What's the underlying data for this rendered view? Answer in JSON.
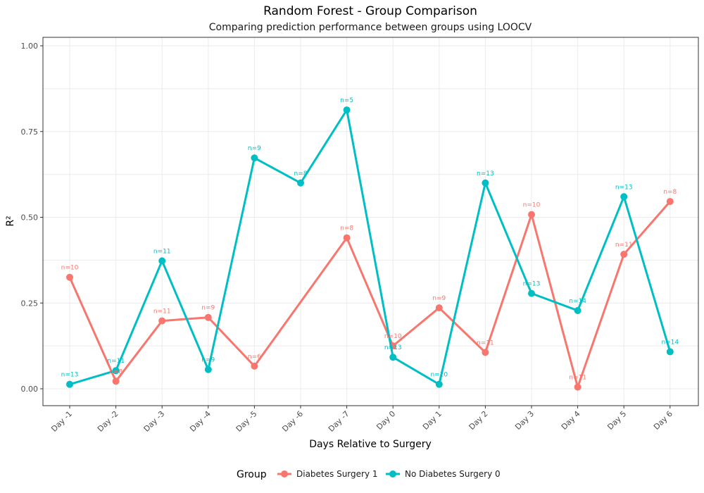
{
  "chart_data": {
    "type": "line",
    "title": "Random Forest - Group Comparison",
    "subtitle": "Comparing prediction performance between groups using LOOCV",
    "xlabel": "Days Relative to Surgery",
    "ylabel": "R²",
    "ylim": [
      0,
      1
    ],
    "yticks": [
      "0.00",
      "0.25",
      "0.50",
      "0.75",
      "1.00"
    ],
    "categories": [
      "Day -1",
      "Day -2",
      "Day -3",
      "Day -4",
      "Day -5",
      "Day -6",
      "Day -7",
      "Day 0",
      "Day 1",
      "Day 2",
      "Day 3",
      "Day 4",
      "Day 5",
      "Day 6"
    ],
    "grid": true,
    "legend": {
      "title": "Group",
      "position": "bottom"
    },
    "series": [
      {
        "name": "Diabetes Surgery 1",
        "color": "#F8766D",
        "values": [
          0.325,
          0.022,
          0.198,
          0.208,
          0.066,
          null,
          0.44,
          0.125,
          0.236,
          0.106,
          0.508,
          0.005,
          0.392,
          0.546
        ],
        "n_labels": [
          "n=10",
          "n=8",
          "n=11",
          "n=9",
          "n=6",
          null,
          "n=8",
          "n=10",
          "n=9",
          "n=11",
          "n=10",
          "n=11",
          "n=11",
          "n=8"
        ]
      },
      {
        "name": "No Diabetes Surgery 0",
        "color": "#00BFC4",
        "values": [
          0.013,
          0.053,
          0.373,
          0.056,
          0.673,
          0.6,
          0.813,
          0.092,
          0.013,
          0.6,
          0.278,
          0.228,
          0.56,
          0.108
        ],
        "n_labels": [
          "n=13",
          "n=11",
          "n=11",
          "n=9",
          "n=9",
          "n=8",
          "n=5",
          "n=13",
          "n=10",
          "n=13",
          "n=13",
          "n=14",
          "n=13",
          "n=14"
        ]
      }
    ]
  }
}
